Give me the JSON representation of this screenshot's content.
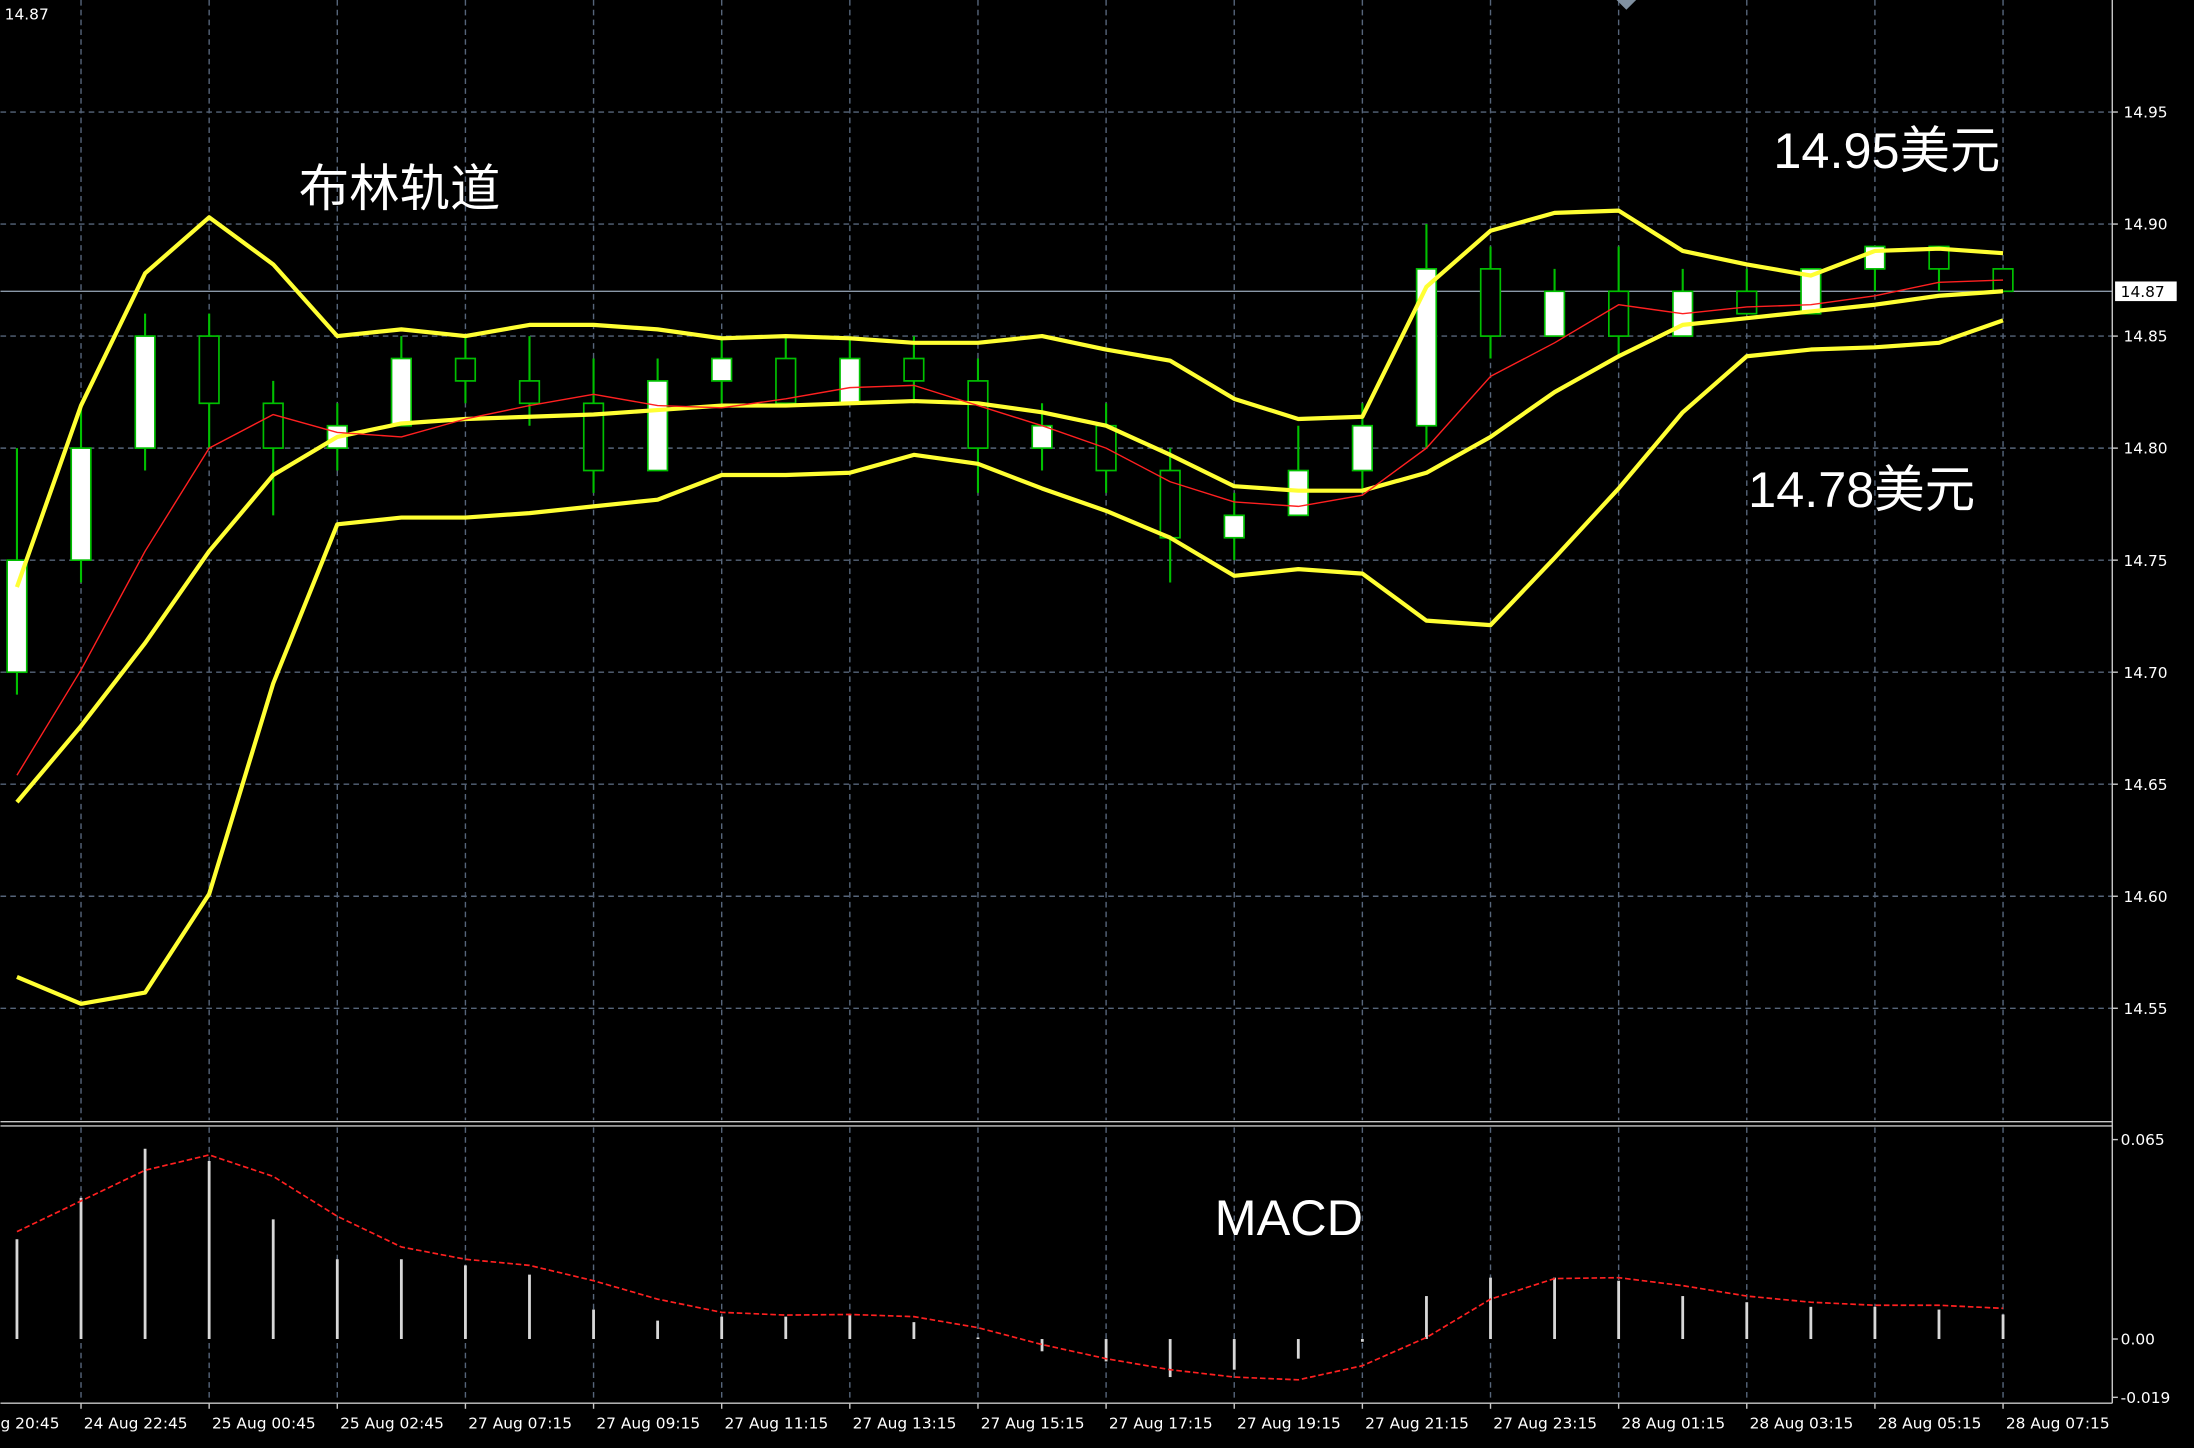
{
  "chart_data": [
    {
      "type": "candlestick",
      "annotations": [
        "布林轨道",
        "14.95美元",
        "14.78美元"
      ],
      "last_price": 14.87,
      "ylim": [
        14.5,
        15.0
      ],
      "yticks": [
        14.55,
        {
          "value": 14.6,
          "label": "14.60"
        },
        14.65,
        {
          "value": 14.7,
          "label": "14.70"
        },
        14.75,
        {
          "value": 14.8,
          "label": "14.80"
        },
        14.85,
        {
          "value": 14.9,
          "label": "14.90"
        },
        14.95
      ],
      "grid": true,
      "up_color": "#ffffff",
      "down_color": "#000000",
      "outline_color": "#00c000",
      "open": [
        null,
        14.7,
        14.75,
        14.8,
        14.85,
        14.82,
        14.8,
        14.81,
        14.84,
        14.83,
        14.82,
        14.79,
        14.83,
        14.84,
        14.82,
        14.84,
        14.83,
        14.8,
        14.81,
        14.79,
        14.76,
        14.77,
        14.79,
        14.81,
        14.88,
        14.85,
        14.87,
        14.85,
        14.87,
        14.86,
        14.88,
        14.89,
        14.88
      ],
      "high": [
        null,
        14.8,
        14.82,
        14.86,
        14.86,
        14.83,
        14.82,
        14.85,
        14.85,
        14.85,
        14.84,
        14.84,
        14.85,
        14.85,
        14.85,
        14.85,
        14.84,
        14.82,
        14.82,
        14.8,
        14.78,
        14.81,
        14.82,
        14.9,
        14.89,
        14.88,
        14.89,
        14.88,
        14.88,
        14.88,
        14.89,
        14.89,
        14.88
      ],
      "low": [
        null,
        14.69,
        14.74,
        14.79,
        14.8,
        14.77,
        14.79,
        14.81,
        14.82,
        14.81,
        14.78,
        14.79,
        14.82,
        14.82,
        14.82,
        14.82,
        14.78,
        14.79,
        14.78,
        14.74,
        14.75,
        14.77,
        14.78,
        14.8,
        14.84,
        14.85,
        14.84,
        14.85,
        14.86,
        14.86,
        14.87,
        14.87,
        14.87
      ],
      "close": [
        null,
        14.75,
        14.8,
        14.85,
        14.82,
        14.8,
        14.81,
        14.84,
        14.83,
        14.82,
        14.79,
        14.83,
        14.84,
        14.82,
        14.84,
        14.83,
        14.8,
        14.81,
        14.79,
        14.76,
        14.77,
        14.79,
        14.81,
        14.88,
        14.85,
        14.87,
        14.85,
        14.87,
        14.86,
        14.88,
        14.89,
        14.88,
        14.87
      ],
      "lines": [
        {
          "color": "#ffff33",
          "width": 3,
          "values": [
            null,
            14.738,
            14.819,
            14.878,
            14.903,
            14.882,
            14.85,
            14.853,
            14.85,
            14.855,
            14.855,
            14.853,
            14.849,
            14.85,
            14.849,
            14.847,
            14.847,
            14.85,
            14.844,
            14.839,
            14.822,
            14.813,
            14.814,
            14.872,
            14.897,
            14.905,
            14.906,
            14.888,
            14.882,
            14.877,
            14.888,
            14.889,
            14.887
          ]
        },
        {
          "color": "#ffff33",
          "width": 3,
          "values": [
            null,
            14.642,
            14.676,
            14.713,
            14.754,
            14.788,
            14.805,
            14.811,
            14.813,
            14.814,
            14.815,
            14.817,
            14.819,
            14.819,
            14.82,
            14.821,
            14.82,
            14.816,
            14.81,
            14.797,
            14.783,
            14.781,
            14.781,
            14.789,
            14.805,
            14.825,
            14.841,
            14.855,
            14.858,
            14.861,
            14.864,
            14.868,
            14.87
          ]
        },
        {
          "color": "#ffff33",
          "width": 3,
          "values": [
            null,
            14.564,
            14.552,
            14.557,
            14.601,
            14.695,
            14.766,
            14.769,
            14.769,
            14.771,
            14.774,
            14.777,
            14.788,
            14.788,
            14.789,
            14.797,
            14.793,
            14.782,
            14.772,
            14.76,
            14.743,
            14.746,
            14.744,
            14.723,
            14.721,
            14.751,
            14.782,
            14.816,
            14.841,
            14.844,
            14.845,
            14.847,
            14.857
          ]
        },
        {
          "color": "#ff2020",
          "width": 1,
          "values": [
            null,
            14.654,
            14.701,
            14.754,
            14.8,
            14.815,
            14.807,
            14.805,
            14.813,
            14.819,
            14.824,
            14.819,
            14.818,
            14.822,
            14.827,
            14.828,
            14.819,
            14.81,
            14.8,
            14.785,
            14.776,
            14.774,
            14.779,
            14.8,
            14.832,
            14.847,
            14.864,
            14.86,
            14.863,
            14.864,
            14.868,
            14.874,
            14.875
          ]
        }
      ]
    },
    {
      "type": "macd",
      "title": "MACD",
      "ylim": [
        -0.02,
        0.069
      ],
      "yticks": [
        -0.019,
        {
          "value": 0,
          "label": "0.00"
        },
        0.065
      ],
      "categories": [
        "g 20:45",
        null,
        "24 Aug 22:45",
        null,
        "25 Aug 00:45",
        null,
        "25 Aug 02:45",
        null,
        "27 Aug 07:15",
        null,
        "27 Aug 09:15",
        null,
        "27 Aug 11:15",
        null,
        "27 Aug 13:15",
        null,
        "27 Aug 15:15",
        null,
        "27 Aug 17:15",
        null,
        "27 Aug 19:15",
        null,
        "27 Aug 21:15",
        null,
        "27 Aug 23:15",
        null,
        "28 Aug 01:15",
        null,
        "28 Aug 03:15",
        null,
        "28 Aug 05:15",
        null,
        "28 Aug 07:15"
      ],
      "histogram_color": "#d8d8d8",
      "histogram": [
        null,
        0.0325,
        0.046,
        0.062,
        0.058,
        0.039,
        0.026,
        0.026,
        0.024,
        0.021,
        0.0096,
        0.006,
        0.0073,
        0.0073,
        0.008,
        0.0055,
        0.0005,
        -0.004,
        -0.0073,
        -0.0124,
        -0.01,
        -0.0064,
        -0.0009,
        0.014,
        0.02,
        0.02,
        0.019,
        0.014,
        0.012,
        0.0105,
        0.0105,
        0.0096,
        0.008
      ],
      "signal_color": "#ff2020",
      "signal": [
        null,
        0.035,
        0.045,
        0.055,
        0.06,
        0.053,
        0.04,
        0.03,
        0.026,
        0.024,
        0.019,
        0.013,
        0.0087,
        0.0078,
        0.008,
        0.0073,
        0.0037,
        -0.0018,
        -0.0064,
        -0.01,
        -0.0124,
        -0.0133,
        -0.0087,
        0.0005,
        0.013,
        0.0197,
        0.02,
        0.0174,
        0.014,
        0.012,
        0.011,
        0.011,
        0.01
      ]
    }
  ]
}
